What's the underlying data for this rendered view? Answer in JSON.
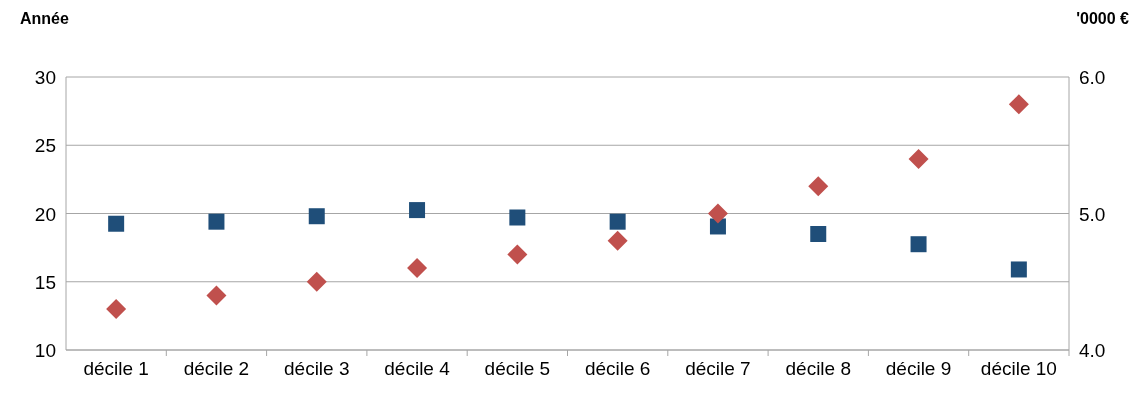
{
  "chart_data": {
    "type": "scatter",
    "ylabel": "Année",
    "y2label": "'0000 €",
    "categories": [
      "décile 1",
      "décile 2",
      "décile 3",
      "décile 4",
      "décile 5",
      "décile 6",
      "décile 7",
      "décile 8",
      "décile 9",
      "décile 10"
    ],
    "series": [
      {
        "color": "#1f4e79",
        "marker": "square",
        "values": [
          19.25,
          19.4,
          19.8,
          20.25,
          19.7,
          19.4,
          19.05,
          18.5,
          17.75,
          15.9
        ]
      },
      {
        "color": "#c0504d",
        "marker": "diamond",
        "axis": "y2",
        "values": [
          4.3,
          4.4,
          4.5,
          4.6,
          4.7,
          4.8,
          5.0,
          5.2,
          5.4,
          5.8
        ]
      }
    ],
    "ylim": [
      10,
      30
    ],
    "yticks": [
      10,
      15,
      20,
      25,
      30
    ],
    "y2lim": [
      4,
      6
    ],
    "y2ticks": [
      {
        "value": 4,
        "label": "4.0"
      },
      {
        "value": 5,
        "label": "5.0"
      },
      {
        "value": 6,
        "label": "6.0"
      }
    ],
    "grid": "y"
  }
}
